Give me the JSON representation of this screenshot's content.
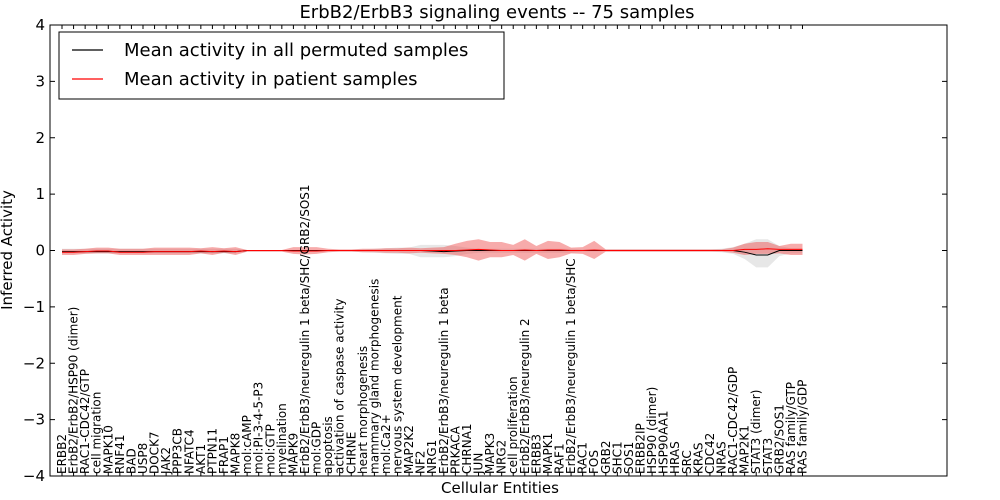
{
  "chart_data": {
    "type": "line",
    "title": "ErbB2/ErbB3 signaling events -- 75 samples",
    "xlabel": "Cellular Entities",
    "ylabel": "Inferred Activity",
    "ylim": [
      -4,
      4
    ],
    "yticks": [
      4,
      3,
      2,
      1,
      0,
      -1,
      -2,
      -3,
      -4
    ],
    "ytick_labels": [
      "4",
      "3",
      "2",
      "1",
      "0",
      "−1",
      "−2",
      "−3",
      "−4"
    ],
    "grid": false,
    "legend_position": "top-left",
    "categories": [
      "ERBB2",
      "ErbB2/ErbB2/HSP90 (dimer)",
      "RAC1-CDC42/GTP",
      "cell migration",
      "MAPK10",
      "RNF41",
      "BAD",
      "USP8",
      "DOCK7",
      "JAK2",
      "PPP3CB",
      "NFATC4",
      "AKT1",
      "PTPN11",
      "FRAP1",
      "MAPK8",
      "mol:cAMP",
      "mol:PI-3-4-5-P3",
      "mol:GTP",
      "myelination",
      "MAPK9",
      "ErbB2/ErbB3/neuregulin 1 beta/SHC/GRB2/SOS1",
      "mol:GDP",
      "apoptosis",
      "activation of caspase activity",
      "CHRNE",
      "heart morphogenesis",
      "mammary gland morphogenesis",
      "mol:Ca2+",
      "nervous system development",
      "MAP2K2",
      "NF2",
      "NRG1",
      "ErbB2/ErbB3/neuregulin 1 beta",
      "PRKACA",
      "CHRNA1",
      "JUN",
      "MAPK3",
      "NRG2",
      "cell proliferation",
      "ErbB2/ErbB3/neuregulin 2",
      "ERBB3",
      "MAPK1",
      "RAF1",
      "ErbB2/ErbB3/neuregulin 1 beta/SHC",
      "RAC1",
      "FOS",
      "GRB2",
      "SHC1",
      "SOS1",
      "ERBB2IP",
      "HSP90 (dimer)",
      "HSP90AA1",
      "HRAS",
      "SRC",
      "KRAS",
      "CDC42",
      "NRAS",
      "RAC1-CDC42/GDP",
      "MAP2K1",
      "STAT3 (dimer)",
      "STAT3",
      "GRB2/SOS1",
      "RAS family/GTP",
      "RAS family/GDP"
    ],
    "series": [
      {
        "name": "Mean activity in all permuted samples",
        "color": "#000000",
        "values": [
          -0.02,
          -0.02,
          -0.02,
          -0.02,
          -0.02,
          -0.02,
          -0.02,
          -0.02,
          -0.02,
          -0.02,
          -0.02,
          -0.02,
          -0.02,
          -0.02,
          -0.02,
          -0.02,
          0,
          0,
          0,
          0,
          0,
          0,
          0,
          0,
          0,
          0,
          0,
          0,
          0,
          0,
          0,
          0,
          -0.01,
          -0.02,
          -0.01,
          0,
          0,
          0,
          0,
          0,
          0,
          0,
          0,
          0,
          0,
          0,
          0,
          0,
          0,
          0,
          0,
          0,
          0,
          0,
          0,
          0,
          0,
          0,
          0,
          -0.03,
          -0.08,
          -0.08,
          0,
          0,
          0
        ],
        "band_lower": [
          -0.05,
          -0.05,
          -0.05,
          -0.05,
          -0.05,
          -0.05,
          -0.05,
          -0.05,
          -0.05,
          -0.05,
          -0.05,
          -0.05,
          -0.05,
          -0.05,
          -0.05,
          -0.05,
          -0.02,
          -0.02,
          -0.02,
          -0.02,
          -0.02,
          -0.02,
          -0.02,
          -0.02,
          -0.02,
          -0.02,
          -0.03,
          -0.04,
          -0.05,
          -0.06,
          -0.06,
          -0.12,
          -0.12,
          -0.12,
          -0.1,
          -0.06,
          -0.04,
          -0.04,
          -0.04,
          -0.04,
          -0.04,
          -0.04,
          -0.04,
          -0.04,
          -0.04,
          -0.02,
          -0.02,
          -0.02,
          -0.02,
          -0.02,
          -0.02,
          -0.02,
          -0.02,
          -0.02,
          -0.02,
          -0.02,
          -0.02,
          -0.03,
          -0.06,
          -0.15,
          -0.3,
          -0.3,
          -0.1,
          -0.05,
          -0.05
        ],
        "band_upper": [
          0.03,
          0.03,
          0.03,
          0.03,
          0.03,
          0.03,
          0.03,
          0.03,
          0.03,
          0.03,
          0.03,
          0.03,
          0.03,
          0.03,
          0.03,
          0.03,
          0.01,
          0.01,
          0.01,
          0.01,
          0.01,
          0.01,
          0.01,
          0.01,
          0.01,
          0.01,
          0.02,
          0.03,
          0.04,
          0.05,
          0.05,
          0.1,
          0.1,
          0.1,
          0.08,
          0.05,
          0.03,
          0.03,
          0.03,
          0.03,
          0.03,
          0.03,
          0.03,
          0.03,
          0.03,
          0.02,
          0.02,
          0.02,
          0.02,
          0.02,
          0.02,
          0.02,
          0.02,
          0.02,
          0.02,
          0.02,
          0.02,
          0.03,
          0.06,
          0.12,
          0.2,
          0.2,
          0.08,
          0.04,
          0.04
        ]
      },
      {
        "name": "Mean activity in patient samples",
        "color": "#ff0000",
        "values": [
          -0.03,
          -0.03,
          -0.02,
          -0.01,
          -0.01,
          -0.03,
          -0.03,
          -0.03,
          -0.02,
          -0.02,
          -0.02,
          -0.02,
          -0.01,
          -0.02,
          -0.01,
          -0.02,
          0,
          0,
          0,
          0,
          -0.01,
          -0.01,
          -0.01,
          0,
          0,
          0,
          0,
          0,
          0,
          0,
          0,
          0,
          0,
          0,
          0,
          0.01,
          0.02,
          0.01,
          0,
          0,
          0.01,
          0,
          0.01,
          0.01,
          0,
          0,
          0.01,
          0,
          0,
          0,
          0,
          0,
          0,
          0,
          0,
          0,
          0,
          0,
          0,
          0.02,
          0.02,
          0.03,
          0.02,
          0.02,
          0.02
        ],
        "band_lower": [
          -0.08,
          -0.08,
          -0.06,
          -0.05,
          -0.05,
          -0.08,
          -0.08,
          -0.08,
          -0.08,
          -0.08,
          -0.08,
          -0.08,
          -0.05,
          -0.08,
          -0.04,
          -0.08,
          -0.02,
          -0.02,
          -0.02,
          -0.02,
          -0.06,
          -0.07,
          -0.06,
          -0.03,
          -0.02,
          -0.02,
          -0.03,
          -0.03,
          -0.04,
          -0.04,
          -0.05,
          -0.04,
          -0.05,
          -0.06,
          -0.08,
          -0.12,
          -0.18,
          -0.12,
          -0.12,
          -0.08,
          -0.18,
          -0.06,
          -0.15,
          -0.12,
          -0.05,
          -0.06,
          -0.15,
          -0.02,
          -0.02,
          -0.02,
          -0.02,
          -0.02,
          -0.02,
          -0.02,
          -0.02,
          -0.02,
          -0.02,
          -0.02,
          -0.04,
          -0.08,
          -0.06,
          -0.06,
          -0.05,
          -0.08,
          -0.08
        ],
        "band_upper": [
          0.02,
          0.02,
          0.03,
          0.05,
          0.05,
          0.03,
          0.03,
          0.03,
          0.05,
          0.05,
          0.05,
          0.05,
          0.04,
          0.06,
          0.04,
          0.06,
          0.01,
          0.01,
          0.01,
          0.01,
          0.06,
          0.06,
          0.06,
          0.03,
          0.02,
          0.02,
          0.03,
          0.03,
          0.04,
          0.04,
          0.05,
          0.04,
          0.05,
          0.06,
          0.12,
          0.17,
          0.2,
          0.15,
          0.15,
          0.1,
          0.2,
          0.08,
          0.17,
          0.15,
          0.05,
          0.06,
          0.17,
          0.02,
          0.02,
          0.02,
          0.02,
          0.02,
          0.02,
          0.02,
          0.02,
          0.02,
          0.02,
          0.02,
          0.05,
          0.12,
          0.15,
          0.15,
          0.08,
          0.12,
          0.12
        ]
      }
    ]
  }
}
